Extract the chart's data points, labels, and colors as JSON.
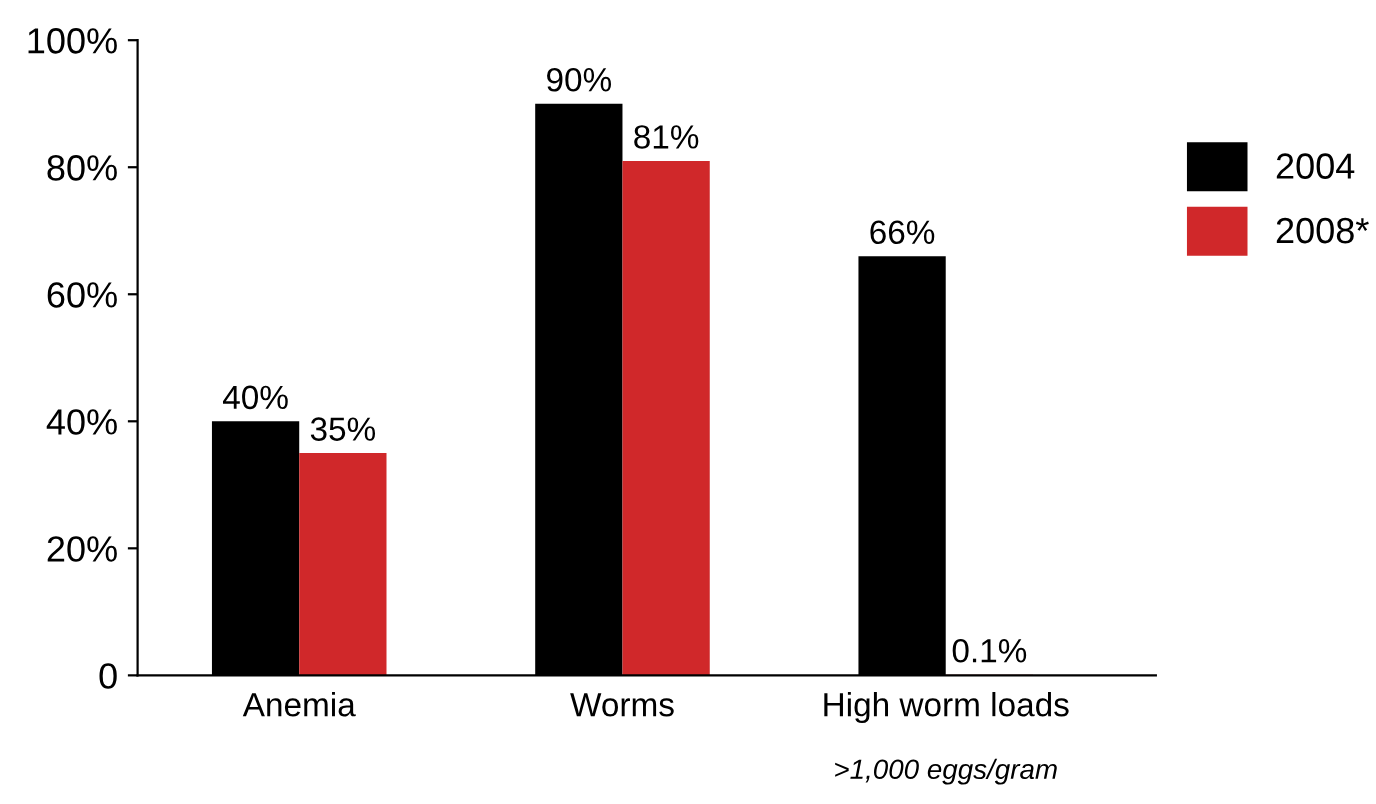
{
  "chart_data": {
    "type": "bar",
    "categories": [
      "Anemia",
      "Worms",
      "High worm loads"
    ],
    "series": [
      {
        "name": "2004",
        "color": "#000000",
        "values": [
          40,
          90,
          66
        ],
        "value_labels": [
          "40%",
          "90%",
          "66%"
        ]
      },
      {
        "name": "2008*",
        "color": "#d0282a",
        "values": [
          35,
          81,
          0.1
        ],
        "value_labels": [
          "35%",
          "81%",
          "0.1%"
        ]
      }
    ],
    "annotations": [
      ">1,000 eggs/gram"
    ],
    "ylim": [
      0,
      100
    ],
    "yticks": [
      {
        "value": 0,
        "label": "0"
      },
      {
        "value": 20,
        "label": "20%"
      },
      {
        "value": 40,
        "label": "40%"
      },
      {
        "value": 60,
        "label": "60%"
      },
      {
        "value": 80,
        "label": "80%"
      },
      {
        "value": 100,
        "label": "100%"
      }
    ],
    "grid": false,
    "legend": "right"
  }
}
